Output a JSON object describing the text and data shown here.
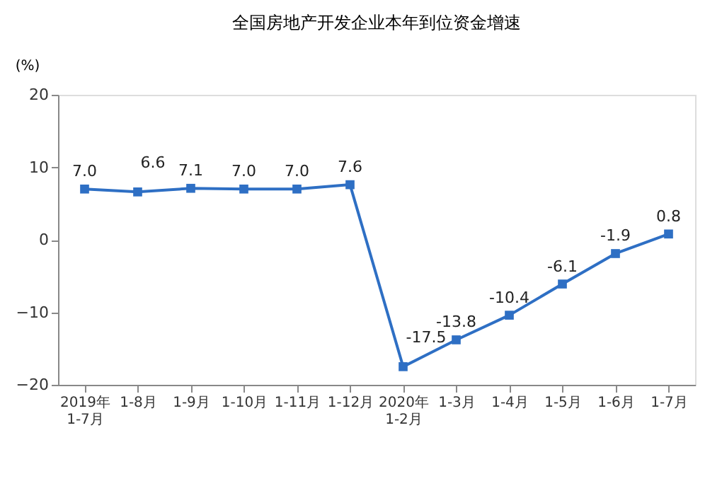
{
  "chart_data": {
    "type": "line",
    "title": "全国房地产开发企业本年到位资金增速",
    "ylabel": "(%)",
    "categories": [
      "2019年\n1-7月",
      "1-8月",
      "1-9月",
      "1-10月",
      "1-11月",
      "1-12月",
      "2020年\n1-2月",
      "1-3月",
      "1-4月",
      "1-5月",
      "1-6月",
      "1-7月"
    ],
    "series": [
      {
        "color": "#2e6fc4",
        "values": [
          7.0,
          6.6,
          7.1,
          7.0,
          7.0,
          7.6,
          -17.5,
          -13.8,
          -10.4,
          -6.1,
          -1.9,
          0.8
        ],
        "value_labels": [
          "7.0",
          "6.6",
          "7.1",
          "7.0",
          "7.0",
          "7.6",
          "-17.5",
          "-13.8",
          "-10.4",
          "-6.1",
          "-1.9",
          "0.8"
        ]
      }
    ],
    "ylim": [
      -20,
      20
    ],
    "yticks": [
      -20,
      -10,
      0,
      10,
      20
    ],
    "grid": false,
    "marker": "square",
    "line_style": "solid"
  }
}
